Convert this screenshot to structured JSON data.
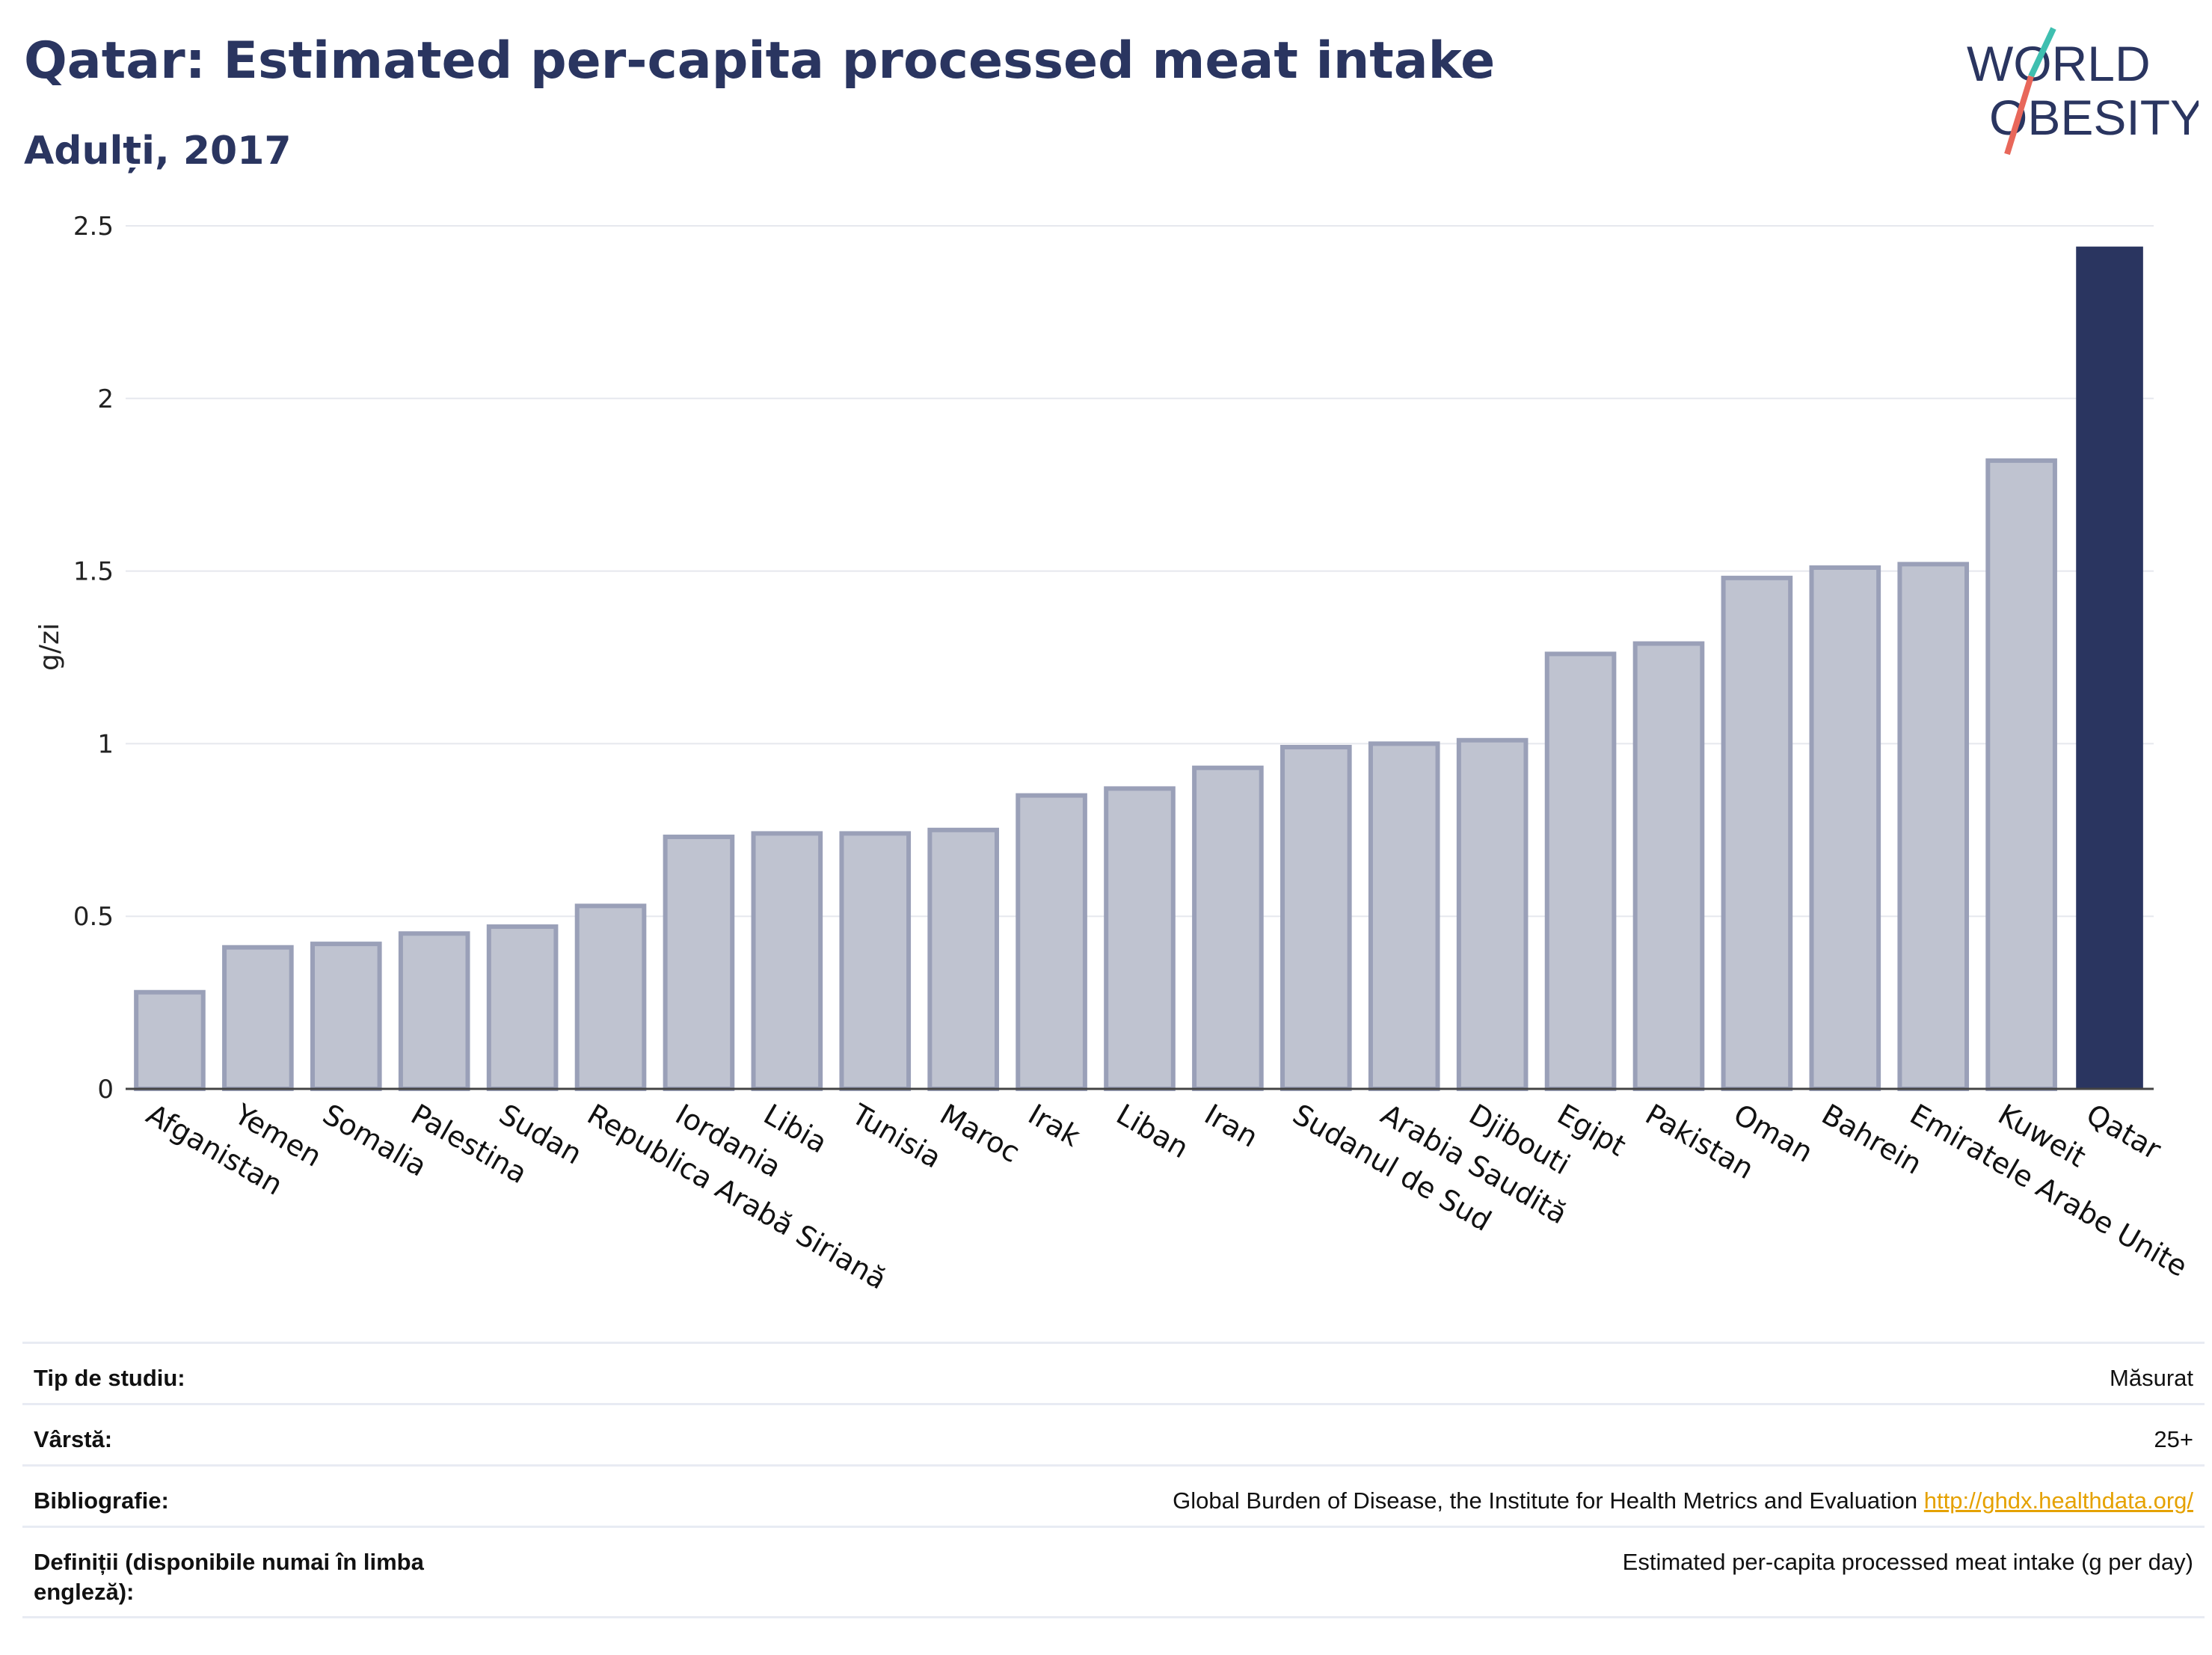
{
  "header": {
    "title": "Qatar: Estimated per-capita processed meat intake",
    "subtitle": "Adulți, 2017"
  },
  "logo": {
    "line1": "WORLD",
    "line2": "OBESITY"
  },
  "colors": {
    "highlight": "#2a3560",
    "bar_fill": "#bfc3d0",
    "bar_stroke": "#9aa0b8",
    "grid": "#e6e8ee",
    "link": "#e5a100"
  },
  "chart_data": {
    "type": "bar",
    "categories": [
      "Afganistan",
      "Yemen",
      "Somalia",
      "Palestina",
      "Sudan",
      "Republica Arabă Siriană",
      "Iordania",
      "Libia",
      "Tunisia",
      "Maroc",
      "Irak",
      "Liban",
      "Iran",
      "Sudanul de Sud",
      "Arabia Saudită",
      "Djibouti",
      "Egipt",
      "Pakistan",
      "Oman",
      "Bahrein",
      "Emiratele Arabe Unite",
      "Kuweit",
      "Qatar"
    ],
    "values": [
      0.28,
      0.41,
      0.42,
      0.45,
      0.47,
      0.53,
      0.73,
      0.74,
      0.74,
      0.75,
      0.85,
      0.87,
      0.93,
      0.99,
      1.0,
      1.01,
      1.26,
      1.29,
      1.48,
      1.51,
      1.52,
      1.82,
      2.44
    ],
    "highlight": "Qatar",
    "ylabel": "g/zi",
    "ylim": [
      0,
      2.5
    ],
    "yticks": [
      0,
      0.5,
      1,
      1.5,
      2,
      2.5
    ],
    "ytick_labels": [
      "0",
      "0.5",
      "1",
      "1.5",
      "2",
      "2.5"
    ],
    "grid": true
  },
  "info": {
    "rows": [
      {
        "key": "Tip de studiu:",
        "value": "Măsurat"
      },
      {
        "key": "Vârstă:",
        "value": "25+"
      },
      {
        "key": "Bibliografie:",
        "value": "Global Burden of Disease, the Institute for Health Metrics and Evaluation",
        "link": "http://ghdx.healthdata.org/"
      },
      {
        "key": "Definiții (disponibile numai în limba engleză):",
        "value": "Estimated per-capita processed meat intake (g per day)"
      }
    ]
  }
}
